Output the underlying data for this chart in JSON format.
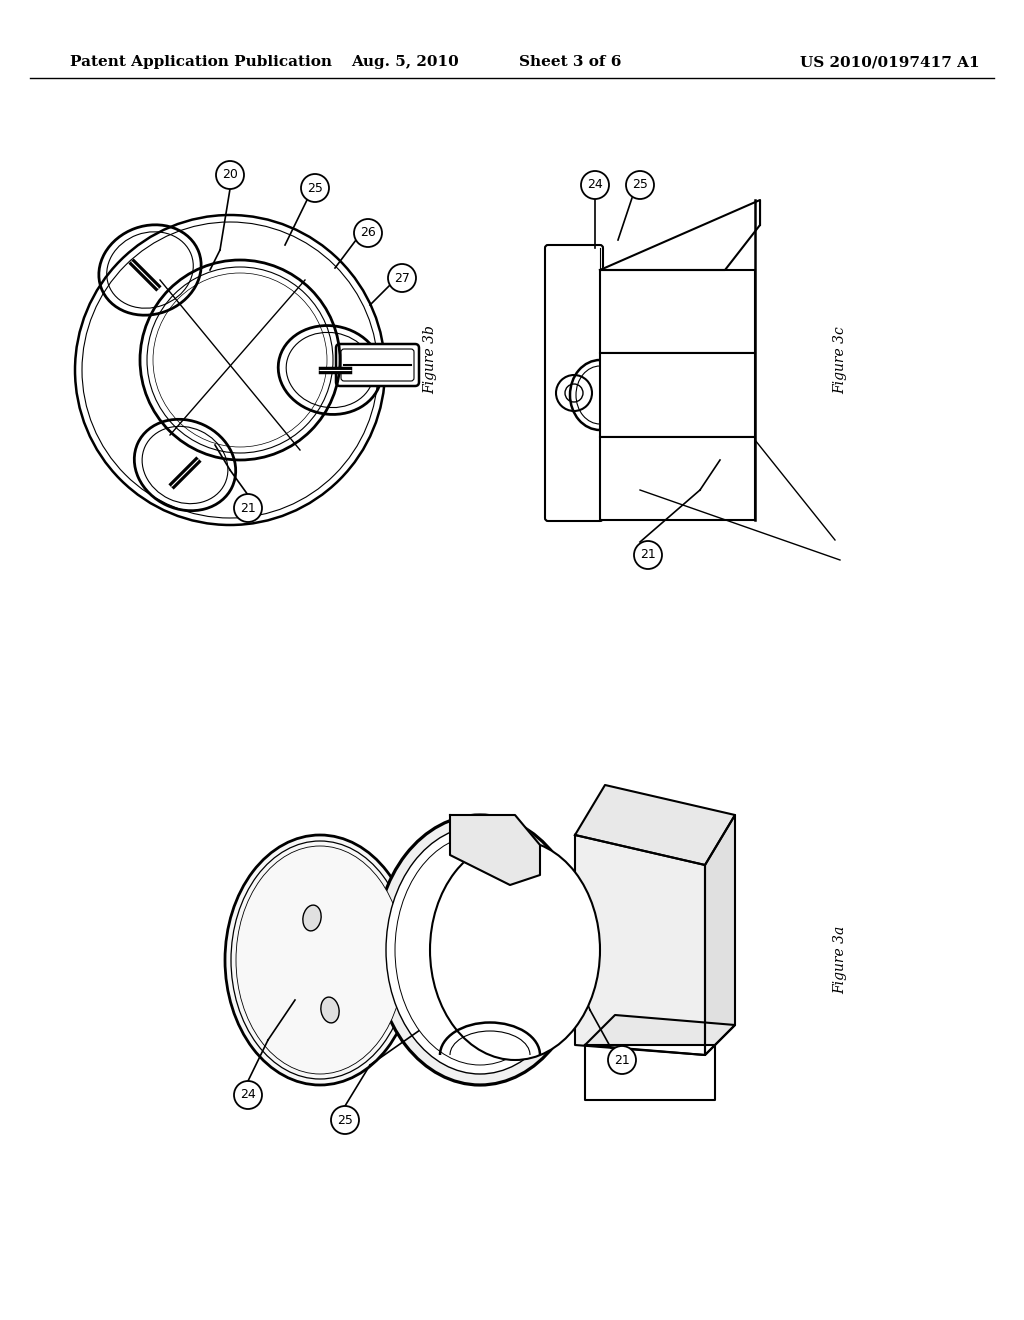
{
  "background_color": "#ffffff",
  "header_text": "Patent Application Publication",
  "header_date": "Aug. 5, 2010",
  "header_sheet": "Sheet 3 of 6",
  "header_patent": "US 2010/0197417 A1",
  "line_color": "#000000",
  "fig3b_label": "Figure 3b",
  "fig3c_label": "Figure 3c",
  "fig3a_label": "Figure 3a"
}
